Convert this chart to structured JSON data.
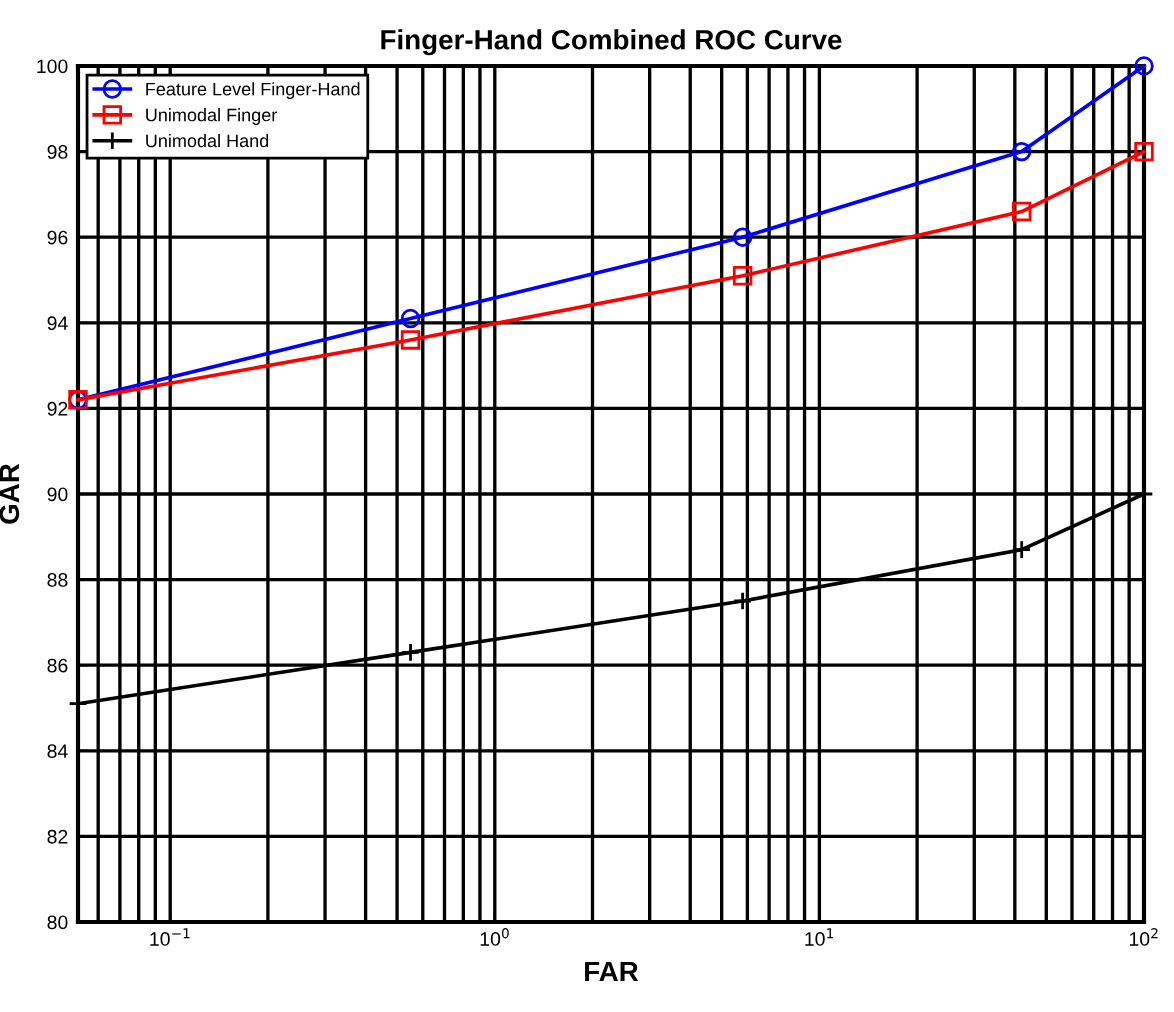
{
  "chart_data": {
    "type": "line",
    "title": "Finger-Hand Combined ROC Curve",
    "xlabel": "FAR",
    "ylabel": "GAR",
    "log": "x",
    "xlim": [
      0.052,
      100
    ],
    "xticks": [
      {
        "value": 0.1,
        "label": "10$^{−1}$"
      },
      {
        "value": 1,
        "label": "10$^{0}$"
      },
      {
        "value": 10,
        "label": "10$^{1}$"
      },
      {
        "value": 100,
        "label": "10$^{2}$"
      }
    ],
    "ylim": [
      80,
      100
    ],
    "yticks": [
      80,
      82,
      84,
      86,
      88,
      90,
      92,
      94,
      96,
      98,
      100
    ],
    "grid": true,
    "legend": "top left",
    "x": [
      0.052,
      0.55,
      5.8,
      42,
      100
    ],
    "series": [
      {
        "name": "Feature Level Finger-Hand",
        "color": "#0000ff",
        "marker": "circle",
        "values": [
          92.2,
          94.1,
          96.0,
          98.0,
          100.0
        ]
      },
      {
        "name": "Unimodal Finger",
        "color": "#ff0000",
        "marker": "square",
        "values": [
          92.2,
          93.6,
          95.1,
          96.6,
          98.0
        ]
      },
      {
        "name": "Unimodal Hand",
        "color": "#000000",
        "marker": "cross",
        "values": [
          85.1,
          86.3,
          87.5,
          88.7,
          90.0
        ]
      }
    ]
  }
}
